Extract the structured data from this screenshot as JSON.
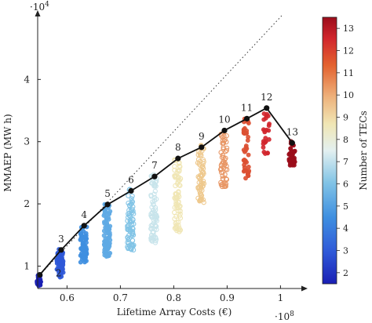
{
  "chart_data": {
    "type": "scatter",
    "xlabel": "Lifetime Array Costs (€)",
    "ylabel": "MMAEP (MW h)",
    "x_multiplier_label": "·10",
    "x_multiplier_exp": "8",
    "y_multiplier_label": "·10",
    "y_multiplier_exp": "4",
    "xlim": [
      0.545,
      1.045
    ],
    "ylim": [
      0.64,
      5.05
    ],
    "x_ticks": [
      0.6,
      0.7,
      0.8,
      0.9,
      1.0
    ],
    "x_tick_labels": [
      "0.6",
      "0.7",
      "0.8",
      "0.9",
      "1"
    ],
    "y_ticks": [
      1,
      2,
      3,
      4
    ],
    "y_tick_labels": [
      "1",
      "2",
      "3",
      "4"
    ],
    "reference_line": {
      "style": "dotted",
      "x": [
        0.545,
        1.005
      ],
      "y": [
        0.82,
        5.05
      ]
    },
    "colorbar": {
      "label": "Number of TECs",
      "ticks": [
        2,
        3,
        4,
        5,
        6,
        7,
        8,
        9,
        10,
        11,
        12,
        13
      ],
      "tick_labels": [
        "2",
        "3",
        "4",
        "5",
        "6",
        "7",
        "8",
        "9",
        "10",
        "11",
        "12",
        "13"
      ],
      "range": [
        1.5,
        13.5
      ]
    },
    "pareto_front": {
      "labels": [
        "2",
        "3",
        "4",
        "5",
        "6",
        "7",
        "8",
        "9",
        "10",
        "11",
        "12",
        "13"
      ],
      "n_tecs": [
        2,
        3,
        4,
        5,
        6,
        7,
        8,
        9,
        10,
        11,
        12,
        13
      ],
      "x": [
        0.549,
        0.589,
        0.632,
        0.676,
        0.72,
        0.764,
        0.808,
        0.852,
        0.895,
        0.937,
        0.974,
        1.022
      ],
      "y": [
        0.86,
        1.26,
        1.65,
        1.99,
        2.21,
        2.44,
        2.73,
        2.91,
        3.18,
        3.37,
        3.54,
        2.98
      ]
    },
    "clusters": [
      {
        "n_tecs": 2,
        "x_center": 0.547,
        "x_spread": 0.004,
        "y_min": 0.68,
        "y_max": 0.9,
        "count": 28
      },
      {
        "n_tecs": 3,
        "x_center": 0.587,
        "x_spread": 0.006,
        "y_min": 0.82,
        "y_max": 1.28,
        "count": 60
      },
      {
        "n_tecs": 4,
        "x_center": 0.631,
        "x_spread": 0.006,
        "y_min": 1.05,
        "y_max": 1.68,
        "count": 70
      },
      {
        "n_tecs": 5,
        "x_center": 0.675,
        "x_spread": 0.006,
        "y_min": 1.15,
        "y_max": 2.02,
        "count": 80
      },
      {
        "n_tecs": 6,
        "x_center": 0.719,
        "x_spread": 0.006,
        "y_min": 1.25,
        "y_max": 2.25,
        "count": 80
      },
      {
        "n_tecs": 7,
        "x_center": 0.763,
        "x_spread": 0.006,
        "y_min": 1.35,
        "y_max": 2.48,
        "count": 80
      },
      {
        "n_tecs": 8,
        "x_center": 0.807,
        "x_spread": 0.006,
        "y_min": 1.55,
        "y_max": 2.75,
        "count": 80
      },
      {
        "n_tecs": 9,
        "x_center": 0.851,
        "x_spread": 0.006,
        "y_min": 2.0,
        "y_max": 2.95,
        "count": 70
      },
      {
        "n_tecs": 10,
        "x_center": 0.894,
        "x_spread": 0.006,
        "y_min": 2.25,
        "y_max": 3.22,
        "count": 60
      },
      {
        "n_tecs": 11,
        "x_center": 0.936,
        "x_spread": 0.005,
        "y_min": 2.4,
        "y_max": 3.4,
        "count": 45
      },
      {
        "n_tecs": 12,
        "x_center": 0.973,
        "x_spread": 0.006,
        "y_min": 2.8,
        "y_max": 3.55,
        "count": 25
      },
      {
        "n_tecs": 13,
        "x_center": 1.022,
        "x_spread": 0.006,
        "y_min": 2.62,
        "y_max": 3.02,
        "count": 50
      }
    ]
  }
}
